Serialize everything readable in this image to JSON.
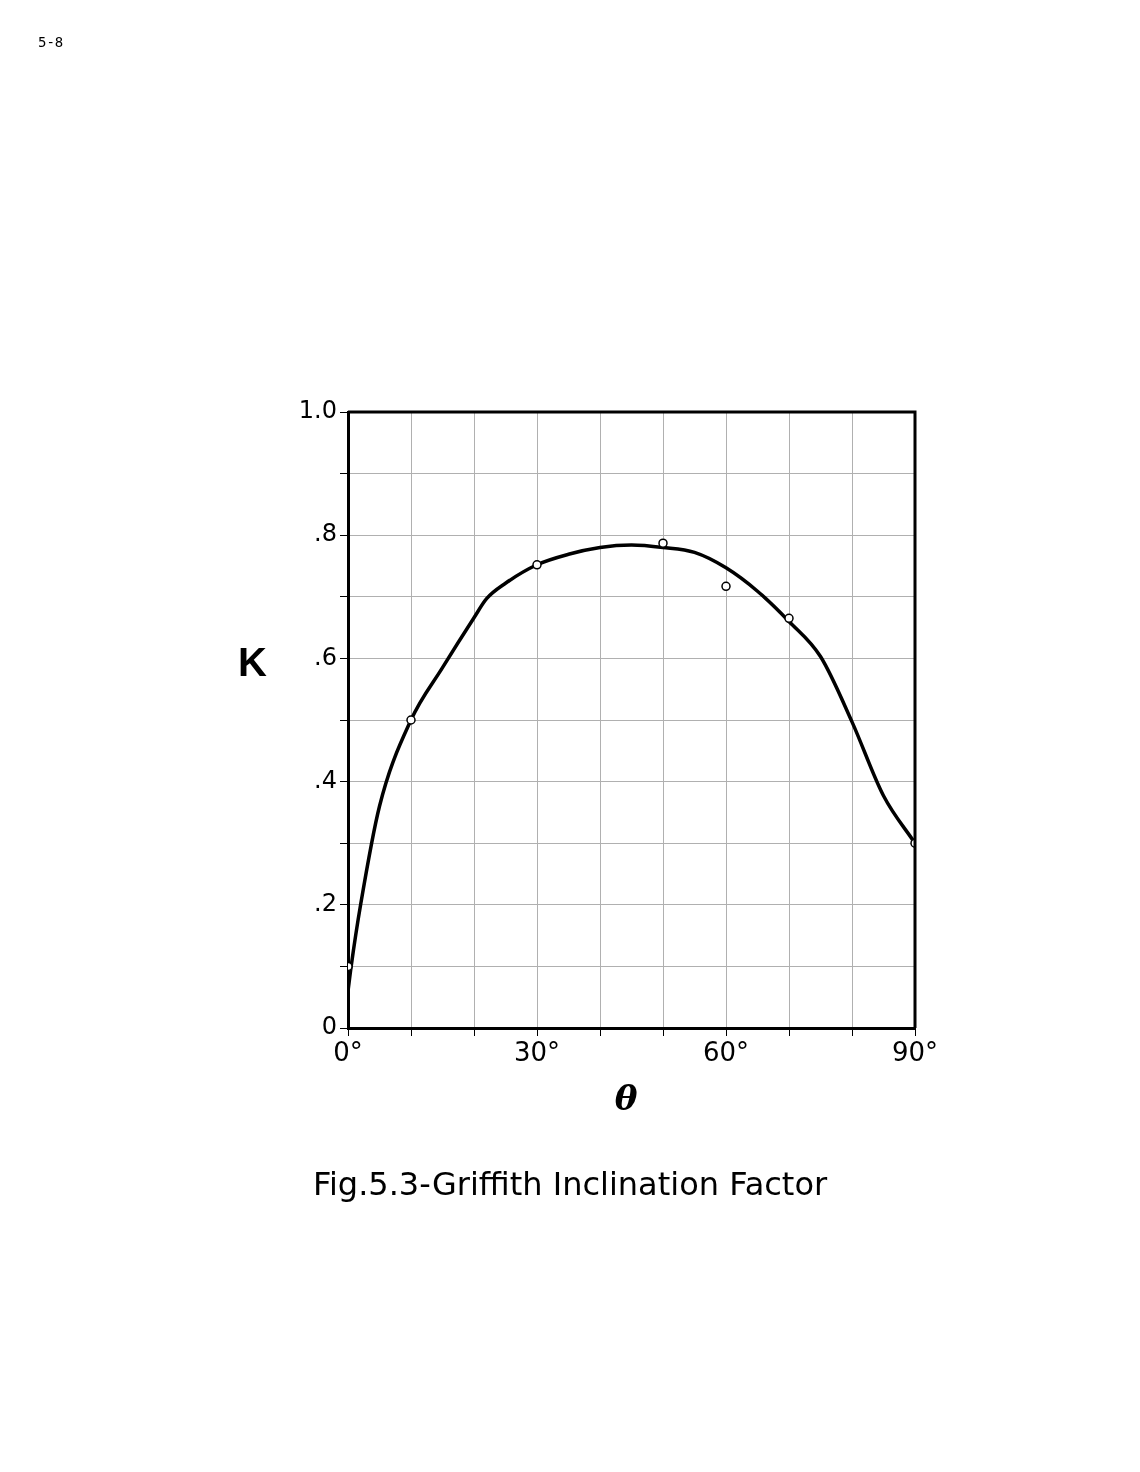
{
  "chart_data": {
    "type": "line",
    "title": "Fig.5.3-Griffith Inclination Factor",
    "xlabel": "θ",
    "ylabel": "K",
    "annotations": [
      "5-8"
    ],
    "xlim": [
      0,
      90
    ],
    "ylim": [
      0,
      1.0
    ],
    "xticks": [
      {
        "value": 0,
        "label": "0°"
      },
      {
        "value": 10,
        "label": null
      },
      {
        "value": 20,
        "label": null
      },
      {
        "value": 30,
        "label": "30°"
      },
      {
        "value": 40,
        "label": null
      },
      {
        "value": 50,
        "label": null
      },
      {
        "value": 60,
        "label": "60°"
      },
      {
        "value": 70,
        "label": null
      },
      {
        "value": 80,
        "label": null
      },
      {
        "value": 90,
        "label": "90°"
      }
    ],
    "yticks": [
      {
        "value": 0,
        "label": "0"
      },
      {
        "value": 0.1,
        "label": null
      },
      {
        "value": 0.2,
        "label": ".2"
      },
      {
        "value": 0.3,
        "label": null
      },
      {
        "value": 0.4,
        "label": ".4"
      },
      {
        "value": 0.5,
        "label": null
      },
      {
        "value": 0.6,
        "label": ".6"
      },
      {
        "value": 0.7,
        "label": null
      },
      {
        "value": 0.8,
        "label": ".8"
      },
      {
        "value": 0.9,
        "label": null
      },
      {
        "value": 1.0,
        "label": "1.0"
      }
    ],
    "grid": true,
    "legend": false,
    "series": [
      {
        "color": "#000000",
        "marker": "none",
        "line_style": "solid",
        "x": [
          0,
          0.5,
          2,
          5,
          10,
          15,
          20,
          22,
          25,
          30,
          35,
          40,
          45,
          50,
          55,
          60,
          65,
          70,
          75,
          80,
          85,
          90
        ],
        "values": [
          0.06,
          0.1,
          0.2,
          0.36,
          0.5,
          0.585,
          0.666,
          0.697,
          0.722,
          0.752,
          0.769,
          0.78,
          0.784,
          0.78,
          0.772,
          0.747,
          0.709,
          0.66,
          0.603,
          0.497,
          0.377,
          0.3
        ]
      },
      {
        "type": "scatter",
        "color": "#000000",
        "marker": "circle",
        "x": [
          0,
          10,
          30,
          50,
          60,
          70,
          90
        ],
        "values": [
          0.1,
          0.5,
          0.752,
          0.787,
          0.717,
          0.665,
          0.3
        ]
      }
    ]
  }
}
